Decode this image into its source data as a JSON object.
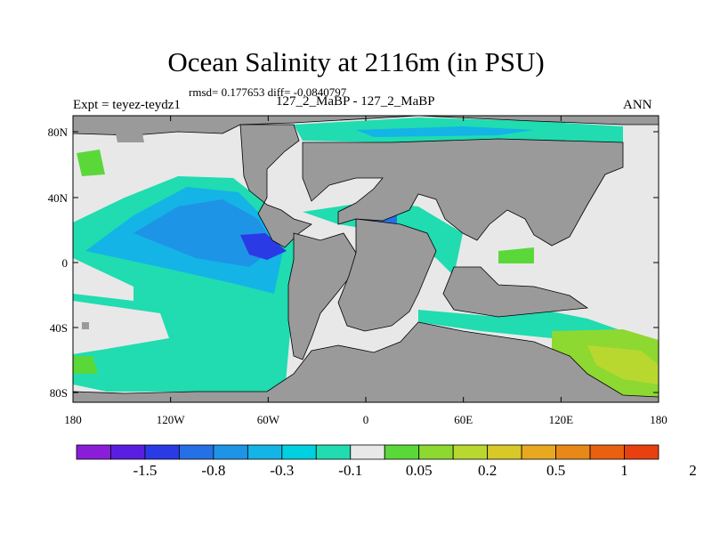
{
  "title": "Ocean Salinity at 2116m (in PSU)",
  "stats": "rmsd= 0.177653 diff= -0.0840797",
  "experiment": "Expt = teyez-teydz1",
  "case_label": "127_2_MaBP - 127_2_MaBP",
  "season": "ANN",
  "axes": {
    "x_ticks": [
      "180",
      "120W",
      "60W",
      "0",
      "60E",
      "120E",
      "180"
    ],
    "y_ticks": [
      "80N",
      "40N",
      "0",
      "40S",
      "80S"
    ]
  },
  "colorbar": {
    "labels": [
      "-1.5",
      "-0.8",
      "-0.3",
      "-0.1",
      "0.05",
      "0.2",
      "0.5",
      "1",
      "2"
    ],
    "colors": [
      "#8a1ed8",
      "#5a1ee0",
      "#2a3ae4",
      "#2670e6",
      "#1e94e6",
      "#14b4e6",
      "#00d0e0",
      "#20dcb0",
      "#e8e8e8",
      "#5ad83a",
      "#8ed832",
      "#b8d830",
      "#d8c828",
      "#e8a820",
      "#e88818",
      "#e86010",
      "#e84010"
    ]
  },
  "colors": {
    "land": "#9a9a9a",
    "near_zero": "#e8e8e8"
  }
}
